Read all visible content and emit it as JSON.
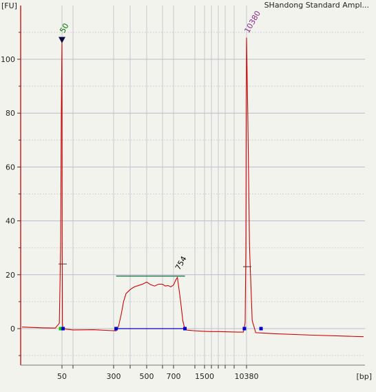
{
  "chart_data": {
    "type": "line",
    "title": "SHandong Standard Ampl...",
    "ylabel": "[FU]",
    "xlabel": "[bp]",
    "x_scale": "ladder (non-linear, by migration time)",
    "ylim": [
      -15,
      118
    ],
    "grid": true,
    "y_ticks": [
      {
        "value": 0,
        "label": "0"
      },
      {
        "value": 20,
        "label": "20"
      },
      {
        "value": 40,
        "label": "40"
      },
      {
        "value": 60,
        "label": "60"
      },
      {
        "value": 80,
        "label": "80"
      },
      {
        "value": 100,
        "label": "100"
      }
    ],
    "x_ticks": [
      {
        "value": 50,
        "label": "50"
      },
      {
        "value": 300,
        "label": "300"
      },
      {
        "value": 500,
        "label": "500"
      },
      {
        "value": 700,
        "label": "700"
      },
      {
        "value": 1500,
        "label": "1500"
      },
      {
        "value": 10380,
        "label": "10380"
      }
    ],
    "ladder_sizes": [
      50,
      100,
      300,
      400,
      500,
      600,
      700,
      1000,
      1500,
      2000,
      3000,
      4000,
      7000,
      10380
    ],
    "peak_labels": [
      {
        "text": "50",
        "x": 50,
        "y": 108,
        "color": "#007a00"
      },
      {
        "text": "754",
        "x": 754,
        "y": 20,
        "color": "#000000"
      },
      {
        "text": "10380",
        "x": 10380,
        "y": 108,
        "color": "#8b2a8b"
      }
    ],
    "series": [
      {
        "color": "#cc0000",
        "points": [
          [
            20,
            0.6
          ],
          [
            35,
            0.3
          ],
          [
            45,
            0.2
          ],
          [
            48,
            2
          ],
          [
            49,
            30
          ],
          [
            49.5,
            80
          ],
          [
            50,
            108
          ],
          [
            50.5,
            80
          ],
          [
            51,
            30
          ],
          [
            52,
            2
          ],
          [
            54,
            0.1
          ],
          [
            70,
            -0.2
          ],
          [
            100,
            -0.5
          ],
          [
            200,
            -0.4
          ],
          [
            280,
            -0.7
          ],
          [
            315,
            -0.8
          ],
          [
            330,
            1
          ],
          [
            345,
            5
          ],
          [
            360,
            10
          ],
          [
            375,
            13
          ],
          [
            400,
            14.5
          ],
          [
            425,
            15.5
          ],
          [
            450,
            16
          ],
          [
            475,
            16.5
          ],
          [
            500,
            17.3
          ],
          [
            525,
            16.3
          ],
          [
            550,
            15.8
          ],
          [
            575,
            16.5
          ],
          [
            600,
            16.5
          ],
          [
            625,
            15.8
          ],
          [
            650,
            16
          ],
          [
            675,
            15.5
          ],
          [
            700,
            16.2
          ],
          [
            730,
            18
          ],
          [
            754,
            19
          ],
          [
            775,
            15
          ],
          [
            800,
            10
          ],
          [
            830,
            3
          ],
          [
            860,
            -0.3
          ],
          [
            900,
            -0.6
          ],
          [
            1000,
            -0.8
          ],
          [
            1500,
            -1
          ],
          [
            2000,
            -1.1
          ],
          [
            3000,
            -1.1
          ],
          [
            5000,
            -1.2
          ],
          [
            8000,
            -1.3
          ],
          [
            9500,
            -1.3
          ],
          [
            10000,
            2
          ],
          [
            10200,
            30
          ],
          [
            10300,
            80
          ],
          [
            10380,
            108
          ],
          [
            10450,
            80
          ],
          [
            10550,
            30
          ],
          [
            10700,
            3
          ],
          [
            10900,
            -1.5
          ],
          [
            12000,
            -1.9
          ],
          [
            14000,
            -2.4
          ],
          [
            16000,
            -2.8
          ],
          [
            17000,
            -3.0
          ]
        ]
      }
    ],
    "regions": [
      {
        "from": 315,
        "to": 860,
        "y": 19.5,
        "label": "754"
      }
    ],
    "markers": [
      {
        "x": 49,
        "kind": "start",
        "color": "#00cc00"
      },
      {
        "x": 55,
        "kind": "end",
        "color": "#0000cc"
      },
      {
        "x": 315,
        "kind": "start",
        "color": "#0000cc"
      },
      {
        "x": 860,
        "kind": "end",
        "color": "#0000cc"
      },
      {
        "x": 9800,
        "kind": "start",
        "color": "#0000cc"
      },
      {
        "x": 11200,
        "kind": "end",
        "color": "#0000cc"
      }
    ]
  }
}
